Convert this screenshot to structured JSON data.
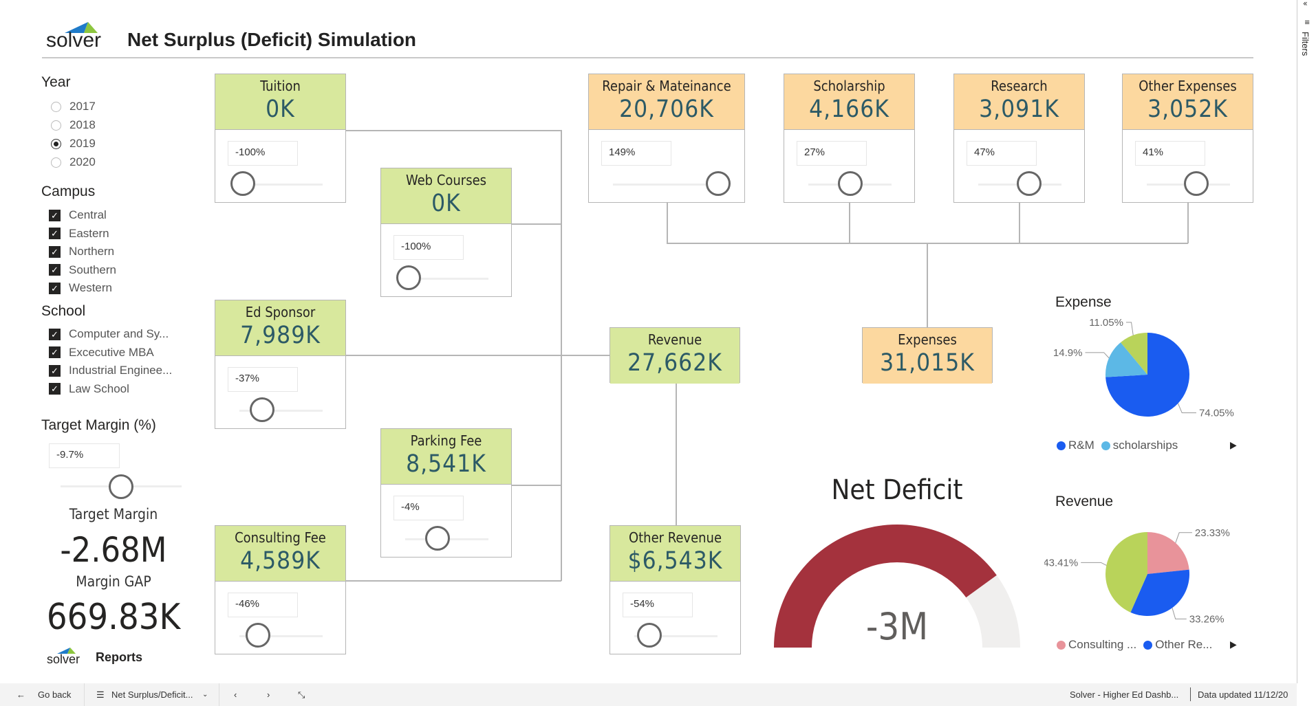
{
  "header": {
    "logo_text": "solver",
    "title": "Net Surplus (Deficit) Simulation"
  },
  "filters_pane": {
    "label": "Filters"
  },
  "year": {
    "title": "Year",
    "options": [
      "2017",
      "2018",
      "2019",
      "2020"
    ],
    "selected": "2019"
  },
  "campus": {
    "title": "Campus",
    "items": [
      "Central",
      "Eastern",
      "Northern",
      "Southern",
      "Western"
    ]
  },
  "school": {
    "title": "School",
    "items": [
      "Computer and Sy...",
      "Excecutive MBA",
      "Industrial Enginee...",
      "Law School"
    ]
  },
  "target": {
    "title": "Target Margin (%)",
    "input": "-9.7%",
    "slider_fraction": 0.5,
    "margin_label": "Target Margin",
    "margin_value": "-2.68M",
    "gap_label": "Margin GAP",
    "gap_value": "669.83K"
  },
  "footer_logo": {
    "logo_text": "solver",
    "reports": "Reports"
  },
  "revenue_cards": [
    {
      "id": "tuition",
      "title": "Tuition",
      "value": "0K",
      "input": "-100%",
      "slider": 0.0
    },
    {
      "id": "web-courses",
      "title": "Web Courses",
      "value": "0K",
      "input": "-100%",
      "slider": 0.0
    },
    {
      "id": "ed-sponsor",
      "title": "Ed Sponsor",
      "value": "7,989K",
      "input": "-37%",
      "slider": 0.25
    },
    {
      "id": "parking-fee",
      "title": "Parking Fee",
      "value": "8,541K",
      "input": "-4%",
      "slider": 0.38
    },
    {
      "id": "consulting-fee",
      "title": "Consulting Fee",
      "value": "4,589K",
      "input": "-46%",
      "slider": 0.2
    },
    {
      "id": "other-revenue",
      "title": "Other Revenue",
      "value": "$6,543K",
      "input": "-54%",
      "slider": 0.15
    }
  ],
  "expense_cards": [
    {
      "id": "repair",
      "title": "Repair & Mateinance",
      "value": "20,706K",
      "input": "149%",
      "slider": 1.0
    },
    {
      "id": "scholarship",
      "title": "Scholarship",
      "value": "4,166K",
      "input": "27%",
      "slider": 0.5
    },
    {
      "id": "research",
      "title": "Research",
      "value": "3,091K",
      "input": "47%",
      "slider": 0.62
    },
    {
      "id": "other-expenses",
      "title": "Other Expenses",
      "value": "3,052K",
      "input": "41%",
      "slider": 0.6
    }
  ],
  "totals": {
    "revenue_title": "Revenue",
    "revenue_value": "27,662K",
    "expenses_title": "Expenses",
    "expenses_value": "31,015K"
  },
  "gauge": {
    "title": "Net Deficit",
    "value": "-3M",
    "fill_fraction": 0.8,
    "fill_color": "#a4323d",
    "track_color": "#f0efee"
  },
  "chart_data": [
    {
      "type": "pie",
      "title": "Expense",
      "slices": [
        {
          "name": "R&M",
          "value": 74.05,
          "label": "74.05%",
          "color": "#1a5cf0"
        },
        {
          "name": "scholarships",
          "value": 14.9,
          "label": "14.9%",
          "color": "#5cb8e6"
        },
        {
          "name": "",
          "value": 11.05,
          "label": "11.05%",
          "color": "#b9d35a"
        }
      ],
      "legend": [
        "R&M",
        "scholarships"
      ]
    },
    {
      "type": "pie",
      "title": "Revenue",
      "slices": [
        {
          "name": "Consulting ...",
          "value": 23.33,
          "label": "23.33%",
          "color": "#e8939a"
        },
        {
          "name": "Other Re...",
          "value": 33.26,
          "label": "33.26%",
          "color": "#1a5cf0"
        },
        {
          "name": "",
          "value": 43.41,
          "label": "43.41%",
          "color": "#b9d35a"
        }
      ],
      "legend": [
        "Consulting ...",
        "Other Re..."
      ]
    }
  ],
  "bottom": {
    "back": "Go back",
    "page": "Net Surplus/Deficit...",
    "report": "Solver - Higher Ed Dashb...",
    "updated": "Data updated 11/12/20"
  }
}
